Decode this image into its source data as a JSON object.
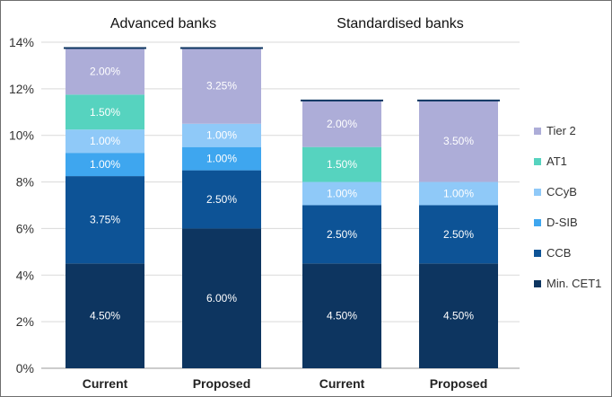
{
  "chart_data": {
    "type": "bar",
    "stacked": true,
    "groups": [
      {
        "title": "Advanced banks",
        "bars": [
          0,
          1
        ]
      },
      {
        "title": "Standardised banks",
        "bars": [
          2,
          3
        ]
      }
    ],
    "categories": [
      "Current",
      "Proposed",
      "Current",
      "Proposed"
    ],
    "series": [
      {
        "name": "Min. CET1",
        "color": "#0d3560",
        "values": [
          4.5,
          6.0,
          4.5,
          4.5
        ],
        "labels": [
          "4.50%",
          "6.00%",
          "4.50%",
          "4.50%"
        ]
      },
      {
        "name": "CCB",
        "color": "#0d5396",
        "values": [
          3.75,
          2.5,
          2.5,
          2.5
        ],
        "labels": [
          "3.75%",
          "2.50%",
          "2.50%",
          "2.50%"
        ]
      },
      {
        "name": "D-SIB",
        "color": "#3ea6ef",
        "values": [
          1.0,
          1.0,
          0,
          0
        ],
        "labels": [
          "1.00%",
          "1.00%",
          "",
          ""
        ]
      },
      {
        "name": "CCyB",
        "color": "#8fc9f8",
        "values": [
          1.0,
          1.0,
          1.0,
          1.0
        ],
        "labels": [
          "1.00%",
          "1.00%",
          "1.00%",
          "1.00%"
        ]
      },
      {
        "name": "AT1",
        "color": "#56d3bf",
        "values": [
          1.5,
          0,
          1.5,
          0
        ],
        "labels": [
          "1.50%",
          "",
          "1.50%",
          ""
        ]
      },
      {
        "name": "Tier 2",
        "color": "#adadd8",
        "values": [
          2.0,
          3.25,
          2.0,
          3.5
        ],
        "labels": [
          "2.00%",
          "3.25%",
          "2.00%",
          "3.50%"
        ]
      }
    ],
    "yticks": [
      "0%",
      "2%",
      "4%",
      "6%",
      "8%",
      "10%",
      "12%",
      "14%"
    ],
    "ylim": [
      0,
      14
    ],
    "grid": true,
    "total_line_color": "#0d3560",
    "legend_position": "right",
    "legend_order": [
      "Tier 2",
      "AT1",
      "CCyB",
      "D-SIB",
      "CCB",
      "Min. CET1"
    ]
  }
}
